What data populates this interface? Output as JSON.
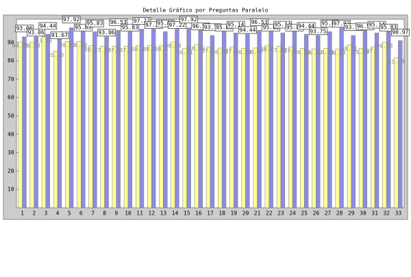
{
  "chart_data": {
    "type": "bar",
    "title": "Detalle Gráfico por Preguntas Paralelo",
    "categories": [
      "1",
      "2",
      "3",
      "4",
      "5",
      "6",
      "7",
      "8",
      "9",
      "10",
      "11",
      "12",
      "13",
      "14",
      "15",
      "16",
      "17",
      "18",
      "19",
      "20",
      "21",
      "22",
      "23",
      "24",
      "25",
      "26",
      "27",
      "28",
      "29",
      "30",
      "31",
      "32",
      "33"
    ],
    "series": [
      {
        "color": "#ffff99",
        "values": [
          90.28,
          90.28,
          93.06,
          85.33,
          90.59,
          90.59,
          88.2,
          87.86,
          87.9,
          87.9,
          88.4,
          88.4,
          88.4,
          90.28,
          86.81,
          88.89,
          87.5,
          86.92,
          87.5,
          86.81,
          86.97,
          88.4,
          87.87,
          87.5,
          86.81,
          86.49,
          86.81,
          86.33,
          88.71,
          86.83,
          87.5,
          90.28,
          81.74
        ]
      },
      {
        "color": "#8c8ce0",
        "values": [
          93.06,
          93.06,
          94.44,
          91.67,
          97.92,
          95.83,
          95.83,
          93.06,
          96.53,
          95.83,
          97.22,
          97.22,
          95.83,
          97.22,
          97.92,
          96.53,
          93.75,
          95.83,
          95.14,
          94.44,
          96.53,
          95.83,
          95.14,
          95.83,
          94.44,
          93.75,
          95.83,
          97.92,
          93.75,
          96.53,
          95.14,
          95.83,
          90.97
        ]
      }
    ],
    "ylim": [
      0,
      100
    ],
    "yticks": [
      10,
      20,
      30,
      40,
      50,
      60,
      70,
      80,
      90
    ]
  }
}
